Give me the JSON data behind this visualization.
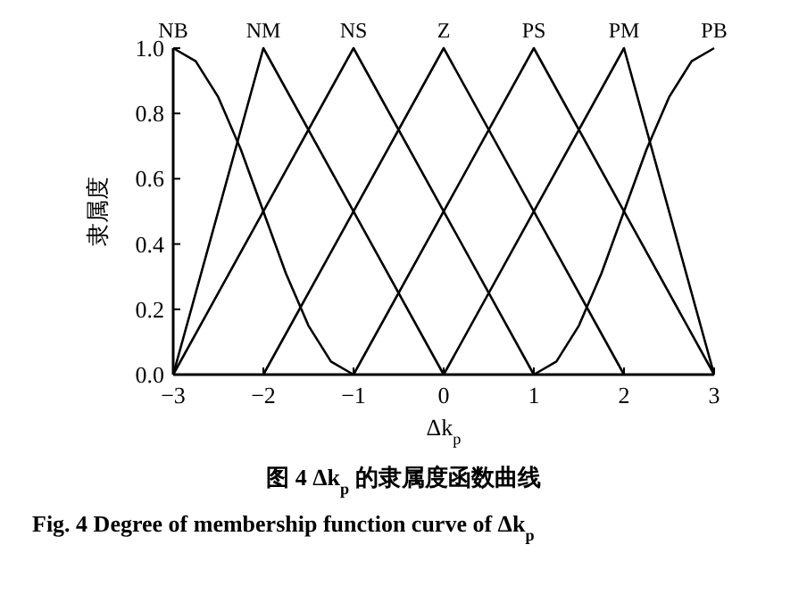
{
  "chart_data": {
    "type": "line",
    "xlabel": "Δk$_{p}$",
    "ylabel": "隶属度",
    "annotations": [
      "图 4  Δk$_{p}$ 的隶属度函数曲线",
      "Fig. 4    Degree of membership function curve of Δk$_{p}$"
    ],
    "series": [
      {
        "name": "NB",
        "color": "#000000",
        "x": [
          -3,
          -2.75,
          -2.5,
          -2.25,
          -2,
          -1.75,
          -1.5,
          -1.25,
          -1
        ],
        "values": [
          1,
          0.96,
          0.85,
          0.69,
          0.5,
          0.31,
          0.15,
          0.04,
          0
        ]
      },
      {
        "name": "NM",
        "color": "#000000",
        "x": [
          -3,
          -2,
          0
        ],
        "values": [
          0,
          1,
          0
        ]
      },
      {
        "name": "NS",
        "color": "#000000",
        "x": [
          -3,
          -1,
          1
        ],
        "values": [
          0,
          1,
          0
        ]
      },
      {
        "name": "Z",
        "color": "#000000",
        "x": [
          -2,
          0,
          2
        ],
        "values": [
          0,
          1,
          0
        ]
      },
      {
        "name": "PS",
        "color": "#000000",
        "x": [
          -1,
          1,
          3
        ],
        "values": [
          0,
          1,
          0
        ]
      },
      {
        "name": "PM",
        "color": "#000000",
        "x": [
          0,
          2,
          3
        ],
        "values": [
          0,
          1,
          0
        ]
      },
      {
        "name": "PB",
        "color": "#000000",
        "x": [
          1,
          1.25,
          1.5,
          1.75,
          2,
          2.25,
          2.5,
          2.75,
          3
        ],
        "values": [
          0,
          0.04,
          0.15,
          0.31,
          0.5,
          0.69,
          0.85,
          0.96,
          1
        ]
      }
    ],
    "xlim": [
      -3,
      3
    ],
    "xticks": [
      {
        "value": -3,
        "label": "−3"
      },
      {
        "value": -2,
        "label": "−2"
      },
      {
        "value": -1,
        "label": "−1"
      },
      0,
      1,
      2,
      3
    ],
    "ylim": [
      0,
      1
    ],
    "yticks": [
      {
        "value": 0,
        "label": "0.0"
      },
      {
        "value": 0.2,
        "label": "0.2"
      },
      {
        "value": 0.4,
        "label": "0.4"
      },
      {
        "value": 0.6,
        "label": "0.6"
      },
      {
        "value": 0.8,
        "label": "0.8"
      },
      {
        "value": 1,
        "label": "1.0"
      }
    ],
    "grid": false,
    "marker": "none",
    "line_style": "solid"
  }
}
